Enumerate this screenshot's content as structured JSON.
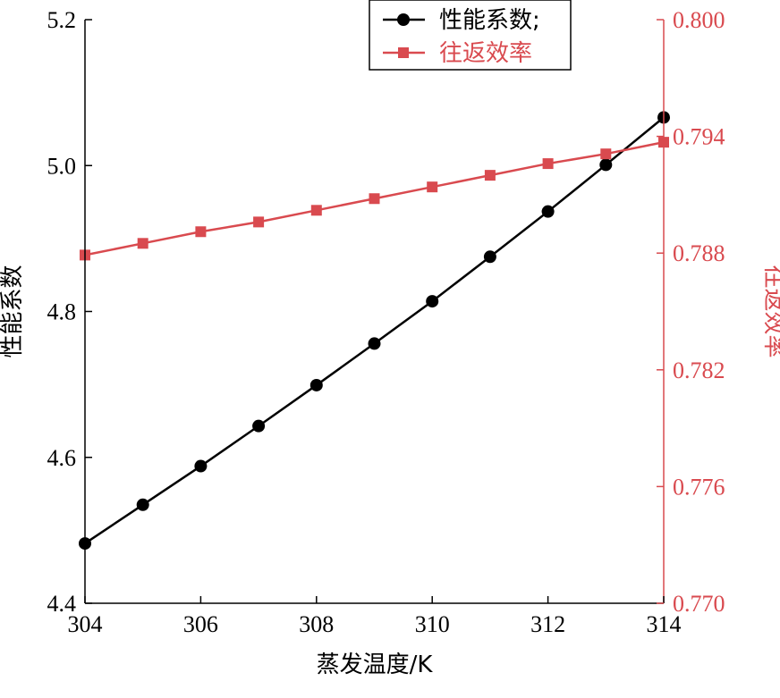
{
  "chart_data": {
    "type": "line",
    "xlabel": "蒸发温度/K",
    "ylabel_left": "性能系数",
    "ylabel_right": "往返效率",
    "xlim": [
      304,
      314
    ],
    "ylim_left": [
      4.4,
      5.2
    ],
    "ylim_right": [
      0.77,
      0.8
    ],
    "x_ticks": [
      "304",
      "306",
      "308",
      "310",
      "312",
      "314"
    ],
    "y_ticks_left": [
      "4.4",
      "4.6",
      "4.8",
      "5.0",
      "5.2"
    ],
    "y_ticks_right": [
      "0.770",
      "0.776",
      "0.782",
      "0.788",
      "0.794",
      "0.800"
    ],
    "x": [
      304,
      305,
      306,
      307,
      308,
      309,
      310,
      311,
      312,
      313,
      314
    ],
    "series": [
      {
        "name": "性能系数;",
        "axis": "left",
        "marker": "circle",
        "color": "#000000",
        "values": [
          4.482,
          4.535,
          4.588,
          4.643,
          4.699,
          4.756,
          4.814,
          4.875,
          4.937,
          5.001,
          5.066
        ]
      },
      {
        "name": "往返效率",
        "axis": "right",
        "marker": "square",
        "color": "#d94a4f",
        "values": [
          0.7879,
          0.7885,
          0.7891,
          0.7896,
          0.7902,
          0.7908,
          0.7914,
          0.792,
          0.7926,
          0.7931,
          0.7937
        ]
      }
    ],
    "colors": {
      "axis_left": "#000000",
      "axis_right": "#d94a4f"
    },
    "legend_position": "top-right"
  }
}
